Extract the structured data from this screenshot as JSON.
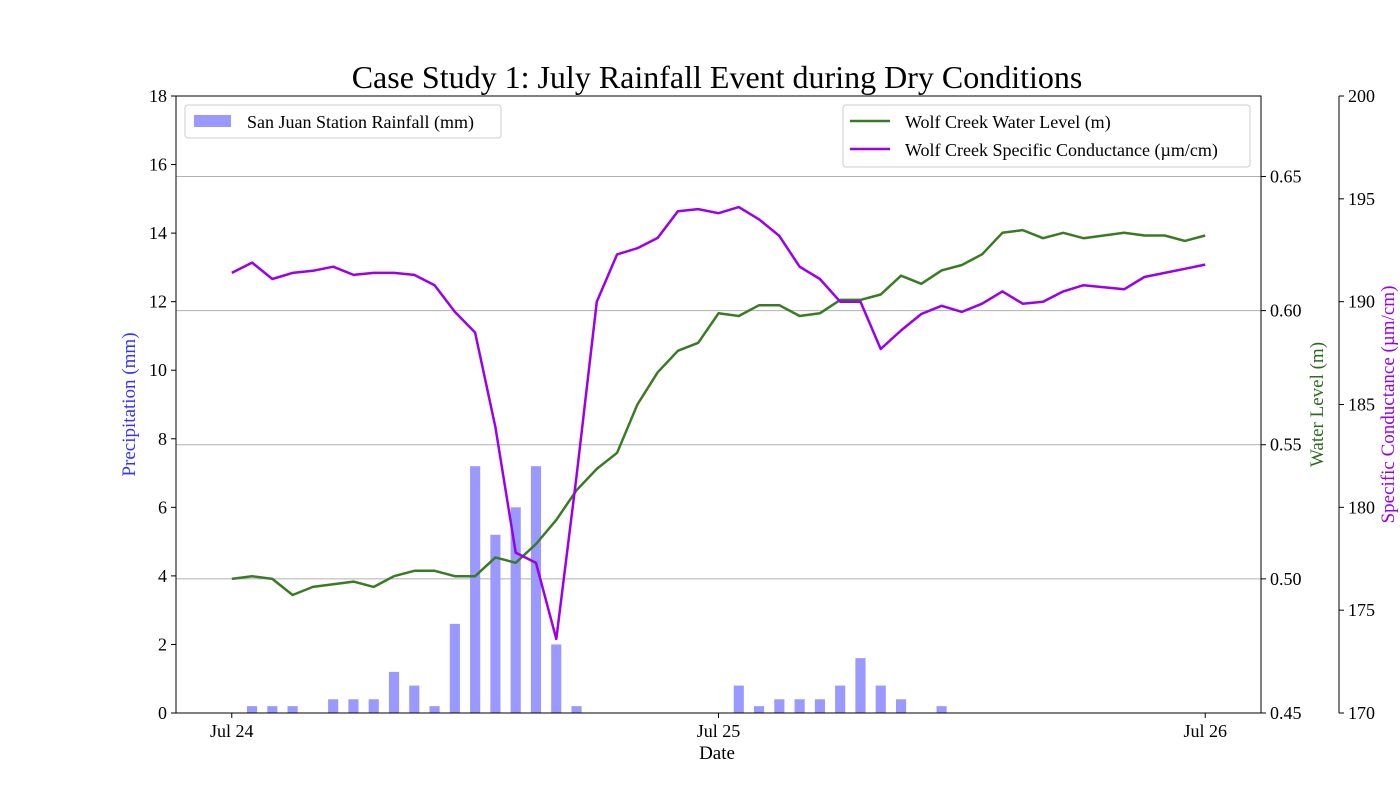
{
  "chart_data": {
    "type": "bar",
    "title": "Case Study 1: July Rainfall Event during Dry Conditions",
    "xlabel": "Date",
    "x_ticks": [
      "Jul 24",
      "Jul 25",
      "Jul 26"
    ],
    "x_range_hours": [
      -2.75,
      50.75
    ],
    "axes": {
      "precipitation": {
        "label": "Precipitation (mm)",
        "color": "#3333ff",
        "ylim": [
          0,
          18
        ],
        "ticks": [
          "0",
          "2",
          "4",
          "6",
          "8",
          "10",
          "12",
          "14",
          "16",
          "18"
        ]
      },
      "water_level": {
        "label": "Water Level (m)",
        "color": "#2e6b1f",
        "ylim": [
          0.45,
          0.68
        ],
        "ticks": [
          "0.45",
          "0.50",
          "0.55",
          "0.60",
          "0.65"
        ],
        "gridlines": true
      },
      "conductance": {
        "label": "Specific Conductance (µm/cm)",
        "color": "#9900ee",
        "ylim": [
          170,
          200
        ],
        "ticks": [
          "170",
          "175",
          "180",
          "185",
          "190",
          "195",
          "200"
        ]
      }
    },
    "legend_left": {
      "position": "upper-left",
      "entries": [
        {
          "label": "San Juan Station Rainfall (mm)",
          "color": "#9999ff",
          "kind": "bar"
        }
      ]
    },
    "legend_right": {
      "position": "upper-right",
      "entries": [
        {
          "label": "Wolf Creek Water Level (m)",
          "color": "#3b7a25",
          "kind": "line"
        },
        {
          "label": "Wolf Creek Specific Conductance (µm/cm)",
          "color": "#9900ee",
          "kind": "line"
        }
      ]
    },
    "series": [
      {
        "name": "San Juan Station Rainfall (mm)",
        "axis": "precipitation",
        "kind": "bar",
        "color": "#9999ff",
        "x_hours": [
          1,
          2,
          3,
          5,
          6,
          7,
          8,
          9,
          10,
          11,
          12,
          13,
          14,
          15,
          16,
          17,
          25,
          26,
          27,
          28,
          29,
          30,
          31,
          32,
          33,
          35
        ],
        "values": [
          0.2,
          0.2,
          0.2,
          0.4,
          0.4,
          0.4,
          1.2,
          0.8,
          0.2,
          2.6,
          7.2,
          5.2,
          6.0,
          7.2,
          2.0,
          0.2,
          0.8,
          0.2,
          0.4,
          0.4,
          0.4,
          0.8,
          1.6,
          0.8,
          0.4,
          0.2
        ]
      },
      {
        "name": "Wolf Creek Water Level (m)",
        "axis": "water_level",
        "kind": "line",
        "color": "#3b7a25",
        "x_hours": [
          0,
          1,
          2,
          3,
          4,
          5,
          6,
          7,
          8,
          9,
          10,
          11,
          12,
          13,
          14,
          15,
          16,
          17,
          18,
          19,
          20,
          21,
          22,
          23,
          24,
          25,
          26,
          27,
          28,
          29,
          30,
          31,
          32,
          33,
          34,
          35,
          36,
          37,
          38,
          39,
          40,
          41,
          42,
          43,
          44,
          45,
          46,
          47,
          48
        ],
        "values": [
          0.5,
          0.501,
          0.5,
          0.494,
          0.497,
          0.498,
          0.499,
          0.497,
          0.501,
          0.503,
          0.503,
          0.501,
          0.501,
          0.508,
          0.506,
          0.513,
          0.522,
          0.533,
          0.541,
          0.547,
          0.565,
          0.577,
          0.585,
          0.588,
          0.599,
          0.598,
          0.602,
          0.602,
          0.598,
          0.599,
          0.604,
          0.604,
          0.606,
          0.613,
          0.61,
          0.615,
          0.617,
          0.621,
          0.629,
          0.63,
          0.627,
          0.629,
          0.627,
          0.628,
          0.629,
          0.628,
          0.628,
          0.626,
          0.628
        ]
      },
      {
        "name": "Wolf Creek Specific Conductance (µm/cm)",
        "axis": "conductance",
        "kind": "line",
        "color": "#9900ee",
        "x_hours": [
          0,
          1,
          2,
          3,
          4,
          5,
          6,
          7,
          8,
          9,
          10,
          11,
          12,
          13,
          14,
          15,
          16,
          17,
          18,
          19,
          20,
          21,
          22,
          23,
          24,
          25,
          26,
          27,
          28,
          29,
          30,
          31,
          32,
          33,
          34,
          35,
          36,
          37,
          38,
          39,
          40,
          41,
          42,
          43,
          44,
          45,
          46,
          47,
          48
        ],
        "values": [
          191.4,
          191.9,
          191.1,
          191.4,
          191.5,
          191.7,
          191.3,
          191.4,
          191.4,
          191.3,
          190.8,
          189.5,
          188.5,
          183.9,
          177.8,
          177.3,
          173.6,
          181.5,
          190.0,
          192.3,
          192.6,
          193.1,
          194.4,
          194.5,
          194.3,
          194.6,
          194.0,
          193.2,
          191.7,
          191.1,
          190.0,
          190.0,
          187.7,
          188.6,
          189.4,
          189.8,
          189.5,
          189.9,
          190.5,
          189.9,
          190.0,
          190.5,
          190.8,
          190.7,
          190.6,
          191.2,
          191.4,
          191.6,
          191.8
        ]
      }
    ]
  }
}
